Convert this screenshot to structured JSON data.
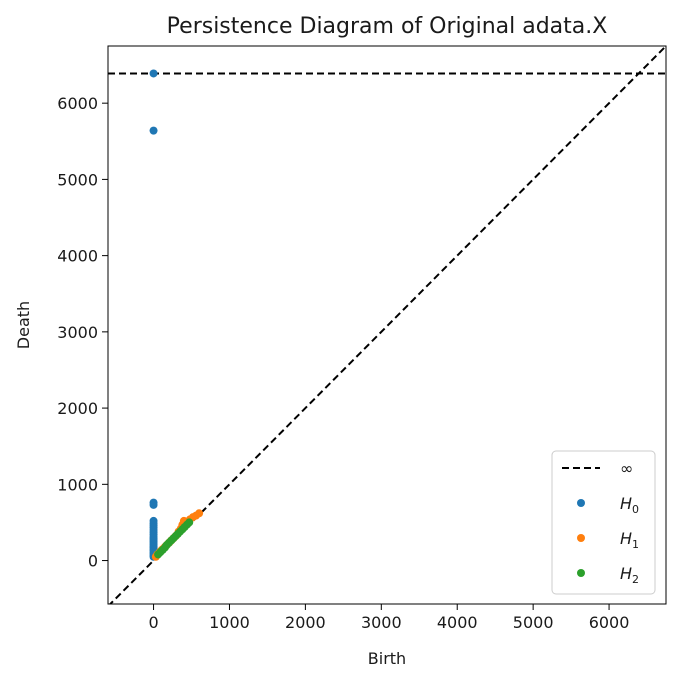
{
  "chart_data": {
    "type": "scatter",
    "title": "Persistence Diagram of Original adata.X",
    "xlabel": "Birth",
    "ylabel": "Death",
    "xlim": [
      -600,
      6750
    ],
    "ylim": [
      -570,
      6750
    ],
    "xticks": [
      0,
      1000,
      2000,
      3000,
      4000,
      5000,
      6000
    ],
    "yticks": [
      0,
      1000,
      2000,
      3000,
      4000,
      5000,
      6000
    ],
    "xtick_labels": [
      "0",
      "1000",
      "2000",
      "3000",
      "4000",
      "5000",
      "6000"
    ],
    "ytick_labels": [
      "0",
      "1000",
      "2000",
      "3000",
      "4000",
      "5000",
      "6000"
    ],
    "grid": false,
    "infinity_line": {
      "y": 6390,
      "label": "∞",
      "style": "dashed",
      "color": "#000000"
    },
    "diagonal": {
      "style": "dashed",
      "color": "#000000"
    },
    "legend": {
      "placement": "lower-right",
      "entries": [
        {
          "label": "∞",
          "kind": "dashed-line"
        },
        {
          "label_main": "H",
          "label_sub": "0",
          "kind": "marker",
          "color": "#1f77b4"
        },
        {
          "label_main": "H",
          "label_sub": "1",
          "kind": "marker",
          "color": "#ff7f0e"
        },
        {
          "label_main": "H",
          "label_sub": "2",
          "kind": "marker",
          "color": "#2ca02c"
        }
      ]
    },
    "series": [
      {
        "name": "H0",
        "color": "#1f77b4",
        "points": [
          [
            0,
            6390
          ],
          [
            0,
            5640
          ],
          [
            0,
            760
          ],
          [
            0,
            730
          ],
          [
            0,
            520
          ],
          [
            0,
            490
          ],
          [
            0,
            460
          ],
          [
            0,
            430
          ],
          [
            0,
            400
          ],
          [
            0,
            370
          ],
          [
            0,
            340
          ],
          [
            0,
            310
          ],
          [
            0,
            290
          ],
          [
            0,
            270
          ],
          [
            0,
            250
          ],
          [
            0,
            230
          ],
          [
            0,
            210
          ],
          [
            0,
            190
          ],
          [
            0,
            170
          ],
          [
            0,
            150
          ],
          [
            0,
            130
          ],
          [
            0,
            110
          ],
          [
            0,
            90
          ],
          [
            0,
            70
          ],
          [
            0,
            50
          ]
        ]
      },
      {
        "name": "H1",
        "color": "#ff7f0e",
        "points": [
          [
            30,
            50
          ],
          [
            50,
            80
          ],
          [
            80,
            110
          ],
          [
            100,
            130
          ],
          [
            120,
            150
          ],
          [
            150,
            180
          ],
          [
            180,
            210
          ],
          [
            210,
            240
          ],
          [
            240,
            270
          ],
          [
            270,
            300
          ],
          [
            300,
            330
          ],
          [
            330,
            380
          ],
          [
            360,
            420
          ],
          [
            380,
            470
          ],
          [
            400,
            520
          ],
          [
            450,
            510
          ],
          [
            480,
            540
          ],
          [
            520,
            570
          ],
          [
            560,
            590
          ],
          [
            600,
            620
          ]
        ]
      },
      {
        "name": "H2",
        "color": "#2ca02c",
        "points": [
          [
            60,
            80
          ],
          [
            90,
            110
          ],
          [
            120,
            140
          ],
          [
            150,
            170
          ],
          [
            170,
            200
          ],
          [
            200,
            230
          ],
          [
            230,
            260
          ],
          [
            260,
            290
          ],
          [
            290,
            320
          ],
          [
            320,
            350
          ],
          [
            350,
            380
          ],
          [
            380,
            410
          ],
          [
            410,
            440
          ],
          [
            440,
            470
          ],
          [
            470,
            500
          ]
        ]
      }
    ]
  }
}
